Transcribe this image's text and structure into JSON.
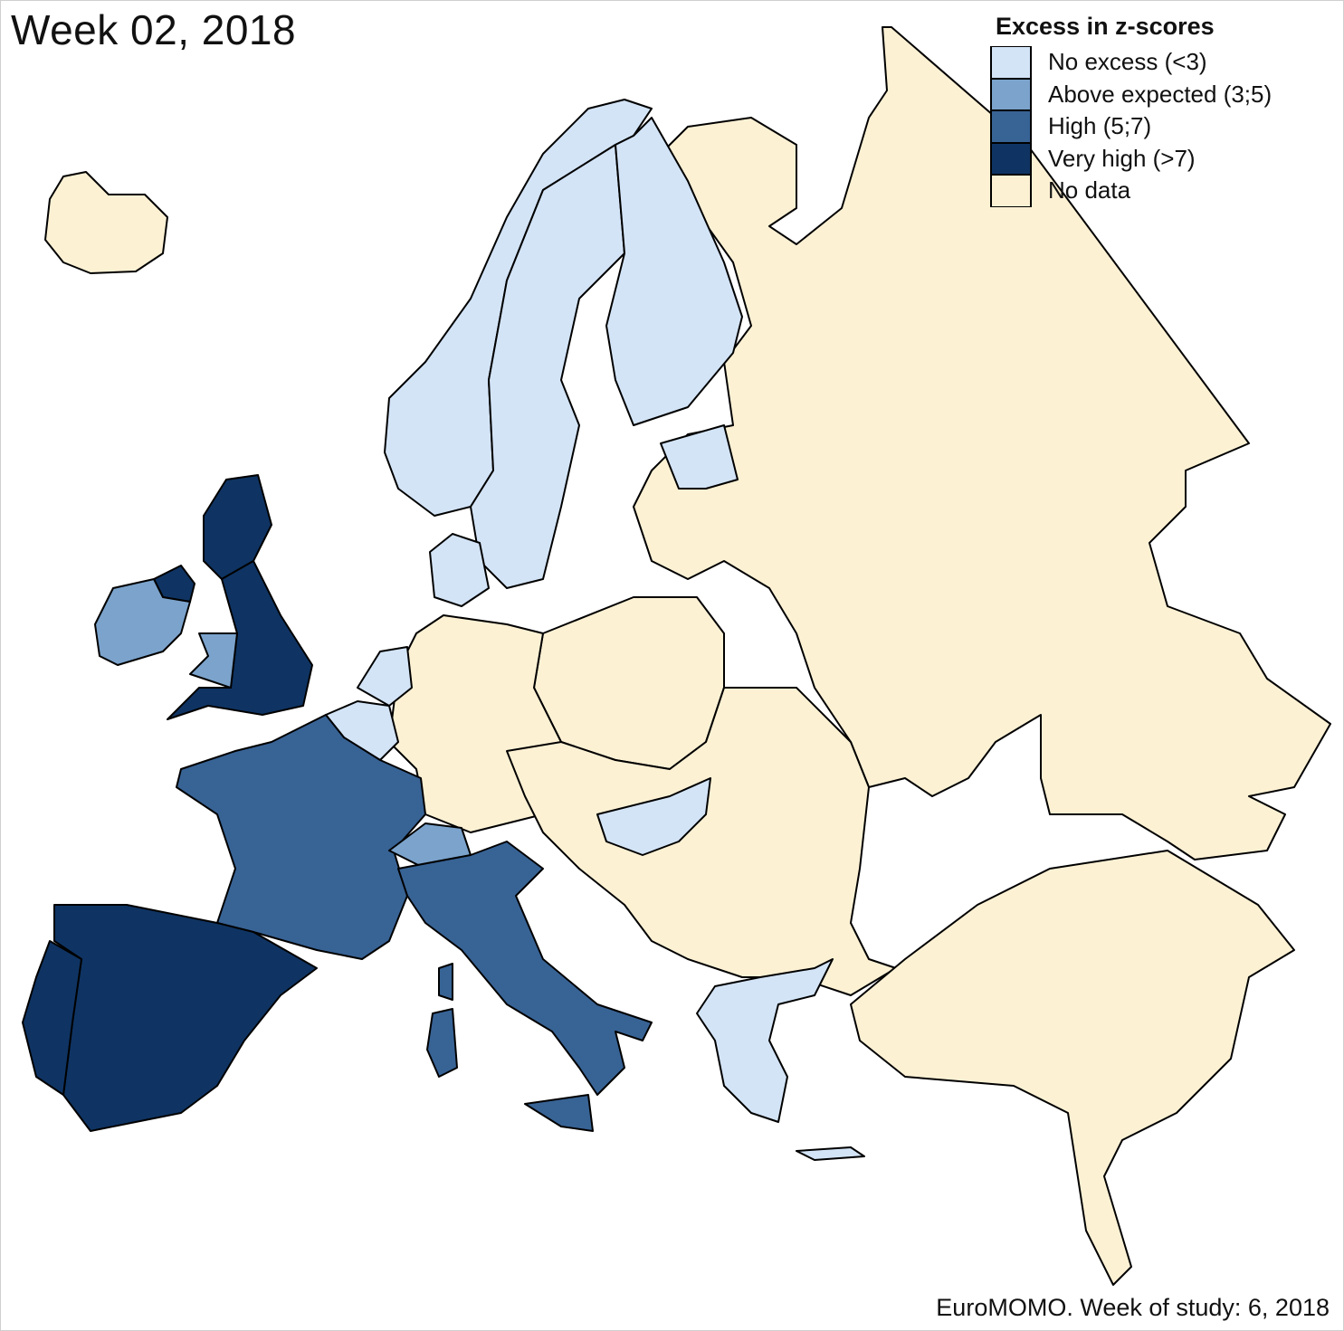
{
  "title": "Week 02, 2018",
  "legend": {
    "title": "Excess in z-scores",
    "items": [
      {
        "key": "no_excess",
        "label": "No excess (<3)",
        "color": "#d3e4f7"
      },
      {
        "key": "above_expected",
        "label": "Above expected (3;5)",
        "color": "#7ba3cc"
      },
      {
        "key": "high",
        "label": "High (5;7)",
        "color": "#386395"
      },
      {
        "key": "very_high",
        "label": "Very high (>7)",
        "color": "#0f3463"
      },
      {
        "key": "no_data",
        "label": "No data",
        "color": "#fdf1d4"
      }
    ]
  },
  "regions": [
    {
      "name": "iceland",
      "category": "no_data"
    },
    {
      "name": "norway",
      "category": "no_excess"
    },
    {
      "name": "sweden",
      "category": "no_excess"
    },
    {
      "name": "finland",
      "category": "no_excess"
    },
    {
      "name": "estonia",
      "category": "no_excess"
    },
    {
      "name": "denmark",
      "category": "no_excess"
    },
    {
      "name": "scotland",
      "category": "very_high"
    },
    {
      "name": "england",
      "category": "very_high"
    },
    {
      "name": "northern-ireland",
      "category": "very_high"
    },
    {
      "name": "ireland",
      "category": "above_expected"
    },
    {
      "name": "wales",
      "category": "above_expected"
    },
    {
      "name": "netherlands",
      "category": "no_excess"
    },
    {
      "name": "belgium",
      "category": "no_excess"
    },
    {
      "name": "france",
      "category": "high"
    },
    {
      "name": "switzerland",
      "category": "above_expected"
    },
    {
      "name": "italy",
      "category": "high"
    },
    {
      "name": "spain",
      "category": "very_high"
    },
    {
      "name": "portugal",
      "category": "very_high"
    },
    {
      "name": "hungary",
      "category": "no_excess"
    },
    {
      "name": "greece",
      "category": "no_excess"
    },
    {
      "name": "russia",
      "category": "no_data"
    },
    {
      "name": "germany",
      "category": "no_data"
    },
    {
      "name": "poland",
      "category": "no_data"
    },
    {
      "name": "turkey",
      "category": "no_data"
    }
  ],
  "source": "EuroMOMO. Week of study: 6, 2018"
}
